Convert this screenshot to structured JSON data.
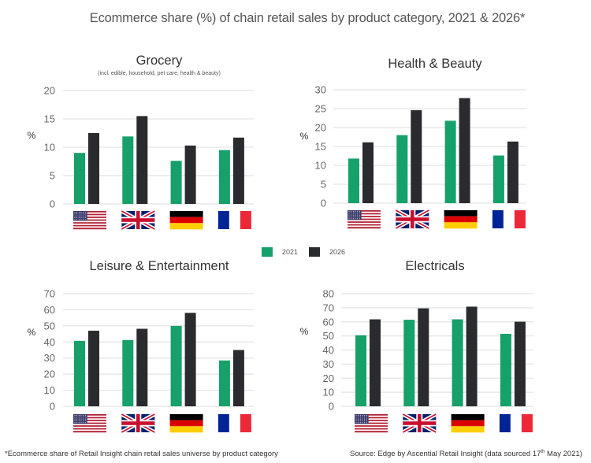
{
  "title": "Ecommerce share (%) of chain retail sales by product category, 2021 & 2026*",
  "legend": [
    {
      "label": "2021",
      "color": "#16a06a"
    },
    {
      "label": "2026",
      "color": "#2a2b2f"
    }
  ],
  "footnote": "*Ecommerce share of Retail Insight chain retail sales universe by product category",
  "source": {
    "prefix": "Source: Edge by Ascential Retail Insight (data sourced 17",
    "sup": "th",
    "suffix": " May 2021)"
  },
  "flag_icons": [
    "us-flag",
    "uk-flag",
    "germany-flag",
    "france-flag"
  ],
  "chart_data": [
    {
      "type": "bar",
      "title": "Grocery",
      "subtitle": "(incl. edible, household, pet care, health & beauty)",
      "ylabel": "%",
      "categories": [
        "US",
        "UK",
        "Germany",
        "France"
      ],
      "ylim": [
        0,
        20
      ],
      "yticks": [
        0,
        5,
        10,
        15,
        20
      ],
      "grid": true,
      "series": [
        {
          "name": "2021",
          "values": [
            9.0,
            11.9,
            7.6,
            9.5
          ]
        },
        {
          "name": "2026",
          "values": [
            12.5,
            15.5,
            10.3,
            11.7
          ]
        }
      ]
    },
    {
      "type": "bar",
      "title": "Health & Beauty",
      "subtitle": "",
      "ylabel": "%",
      "categories": [
        "US",
        "UK",
        "Germany",
        "France"
      ],
      "ylim": [
        0,
        30
      ],
      "yticks": [
        0,
        5,
        10,
        15,
        20,
        25,
        30
      ],
      "grid": true,
      "series": [
        {
          "name": "2021",
          "values": [
            11.8,
            18.0,
            21.8,
            12.6
          ]
        },
        {
          "name": "2026",
          "values": [
            16.1,
            24.6,
            27.8,
            16.3
          ]
        }
      ]
    },
    {
      "type": "bar",
      "title": "Leisure & Entertainment",
      "subtitle": "",
      "ylabel": "%",
      "categories": [
        "US",
        "UK",
        "Germany",
        "France"
      ],
      "ylim": [
        0,
        70
      ],
      "yticks": [
        0,
        10,
        20,
        30,
        40,
        50,
        60,
        70
      ],
      "grid": true,
      "series": [
        {
          "name": "2021",
          "values": [
            40.7,
            41.2,
            50.0,
            28.5
          ]
        },
        {
          "name": "2026",
          "values": [
            47.0,
            48.2,
            58.1,
            35.0
          ]
        }
      ]
    },
    {
      "type": "bar",
      "title": "Electricals",
      "subtitle": "",
      "ylabel": "%",
      "categories": [
        "US",
        "UK",
        "Germany",
        "France"
      ],
      "ylim": [
        0,
        80
      ],
      "yticks": [
        0,
        10,
        20,
        30,
        40,
        50,
        60,
        70,
        80
      ],
      "grid": true,
      "series": [
        {
          "name": "2021",
          "values": [
            50.5,
            61.5,
            61.8,
            51.5
          ]
        },
        {
          "name": "2026",
          "values": [
            61.8,
            69.6,
            70.8,
            60.1
          ]
        }
      ]
    }
  ]
}
